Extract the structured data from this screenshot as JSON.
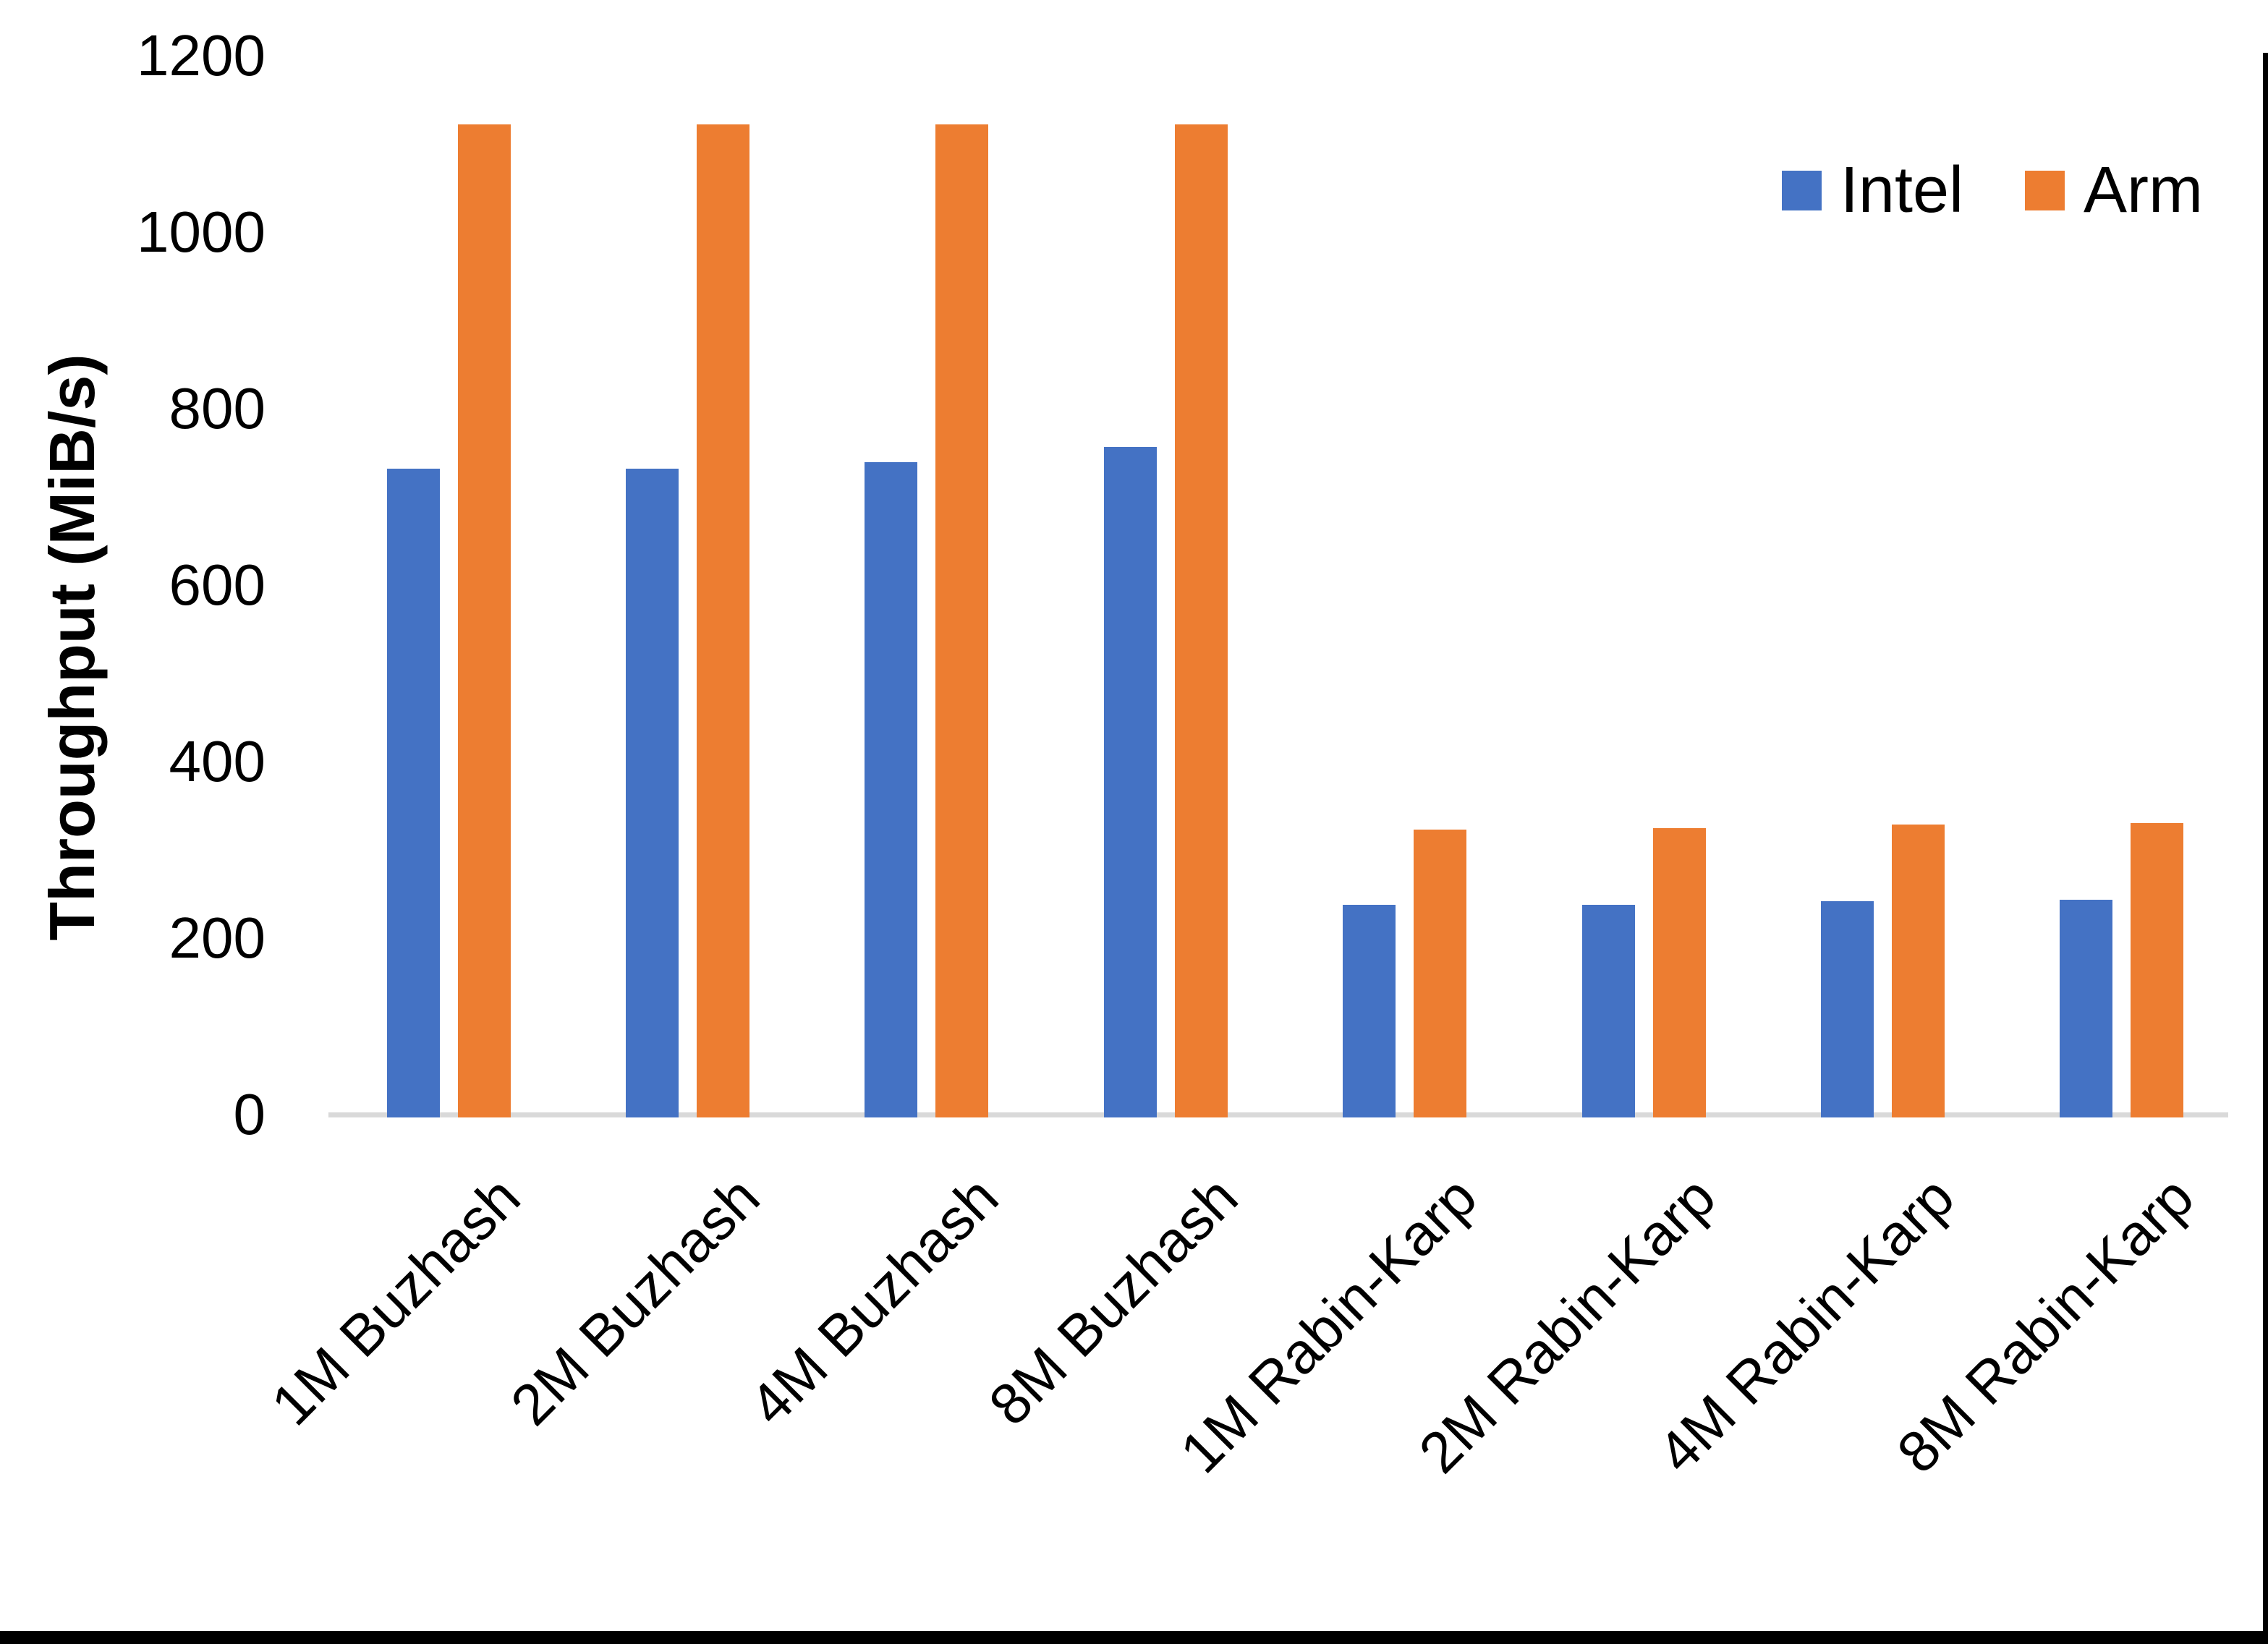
{
  "chart_data": {
    "type": "bar",
    "title": "",
    "categories": [
      "1M Buzhash",
      "2M Buzhash",
      "4M Buzhash",
      "8M Buzhash",
      "1M Rabin-Karp",
      "2M Rabin-Karp",
      "4M Rabin-Karp",
      "8M Rabin-Karp"
    ],
    "series": [
      {
        "name": "Intel",
        "color": "#4472C4",
        "values": [
          735,
          735,
          743,
          760,
          241,
          241,
          245,
          247
        ]
      },
      {
        "name": "Arm",
        "color": "#ED7D31",
        "values": [
          1125,
          1125,
          1125,
          1125,
          326,
          328,
          332,
          334
        ]
      }
    ],
    "xlabel": "",
    "ylabel": "Throughput (MiB/s)",
    "ylim": [
      0,
      1200
    ],
    "yticks": [
      0,
      200,
      400,
      600,
      800,
      1000,
      1200
    ],
    "grid": false,
    "legend_position": "top-right",
    "axis_line_color": "#D9D9D9"
  },
  "y_axis": {
    "title": "Throughput (MiB/s)",
    "tick_labels": [
      "0",
      "200",
      "400",
      "600",
      "800",
      "1000",
      "1200"
    ]
  },
  "legend": {
    "items": [
      {
        "label": "Intel",
        "color": "#4472C4"
      },
      {
        "label": "Arm",
        "color": "#ED7D31"
      }
    ]
  },
  "window": {
    "border_color": "#000000"
  }
}
